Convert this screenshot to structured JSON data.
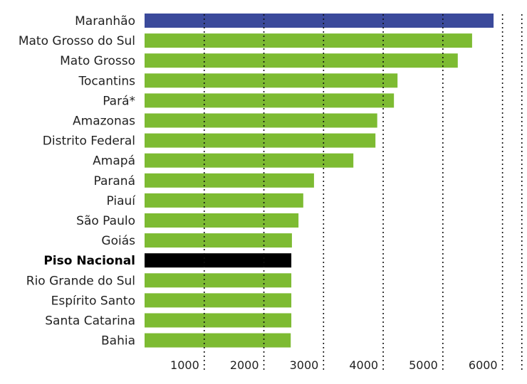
{
  "chart_data": {
    "type": "bar",
    "orientation": "horizontal",
    "title": "",
    "xlabel": "",
    "ylabel": "",
    "categories": [
      "Maranhão",
      "Mato Grosso do Sul",
      "Mato Grosso",
      "Tocantins",
      "Pará*",
      "Amazonas",
      "Distrito Federal",
      "Amapá",
      "Paraná",
      "Piauí",
      "São Paulo",
      "Goiás",
      "Piso Nacional",
      "Rio Grande do Sul",
      "Espírito Santo",
      "Santa Catarina",
      "Bahia"
    ],
    "values": [
      5850,
      5490,
      5250,
      4240,
      4180,
      3900,
      3870,
      3500,
      2840,
      2660,
      2580,
      2470,
      2460,
      2460,
      2460,
      2460,
      2450
    ],
    "bar_colors": [
      "#3b4a9b",
      "#7dbb32",
      "#7dbb32",
      "#7dbb32",
      "#7dbb32",
      "#7dbb32",
      "#7dbb32",
      "#7dbb32",
      "#7dbb32",
      "#7dbb32",
      "#7dbb32",
      "#7dbb32",
      "#000000",
      "#7dbb32",
      "#7dbb32",
      "#7dbb32",
      "#7dbb32"
    ],
    "highlighted_category": "Piso Nacional",
    "x_ticks": [
      1000,
      2000,
      3000,
      4000,
      5000,
      6000
    ],
    "x_tick_labels": [
      "1000",
      "2000",
      "3000",
      "4000",
      "5000",
      "6000"
    ],
    "xlim": [
      0,
      6300
    ],
    "grid": true
  }
}
